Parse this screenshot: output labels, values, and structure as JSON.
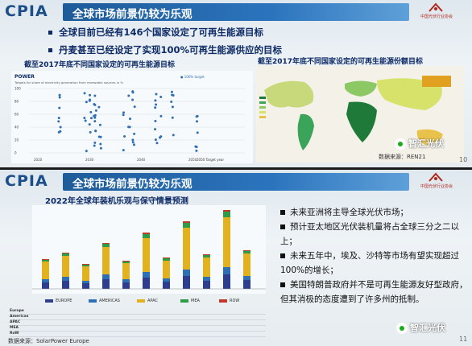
{
  "slide1": {
    "brand": "CPIA",
    "title": "全球市场前景仍较为乐观",
    "bullets": [
      "全球目前已经有146个国家设定了可再生能源目标",
      "丹麦甚至已经设定了实现100%可再生能源供应的目标"
    ],
    "left_subtitle": "截至2017年底不同国家设定的可再生能源目标",
    "right_subtitle": "截至2017年底不同国家设定的可再生能源份额目标",
    "chart_power_label": "POWER",
    "chart_axis_note": "Targets for share of electricity generation from renewable sources in %",
    "chart_legend": "● 100% target",
    "chart_y_ticks": [
      "100",
      "80",
      "60",
      "40",
      "20",
      "0"
    ],
    "chart_x_ticks": [
      "2020",
      "2030",
      "2040",
      "2050"
    ],
    "chart_x_extra": "2050 Target year",
    "source": "数据来源：REN21",
    "page": "10",
    "logo_label": "中国光伏行业协会",
    "watermark": "智汇光伏"
  },
  "slide2": {
    "brand": "CPIA",
    "title": "全球市场前景仍较为乐观",
    "chart_title": "2022年全球年装机乐观与保守情景预测",
    "legend": [
      "EUROPE",
      "AMERICAS",
      "APAC",
      "MEA",
      "ROW"
    ],
    "table_rows": [
      "Europe",
      "Americas",
      "APAC",
      "MEA",
      "RoW"
    ],
    "points": [
      "未来亚洲将主导全球光伏市场；",
      "预计亚太地区光伏装机量将占全球三分之二以上；",
      "未来五年中，埃及、沙特等市场有望实现超过100%的增长；",
      "美国特朗普政府并不是可再生能源友好型政府，但其消极的态度遭到了许多州的抵制。"
    ],
    "source": "数据来源：SolarPower Europe",
    "page": "11",
    "logo_label": "中国光伏行业协会",
    "watermark": "智汇光伏"
  },
  "colors": {
    "title_bar": "#1e5b99",
    "europe": "#2f3d8f",
    "americas": "#2f6fb3",
    "apac": "#e2b21e",
    "mea": "#2e9b48",
    "row": "#c0392b"
  }
}
